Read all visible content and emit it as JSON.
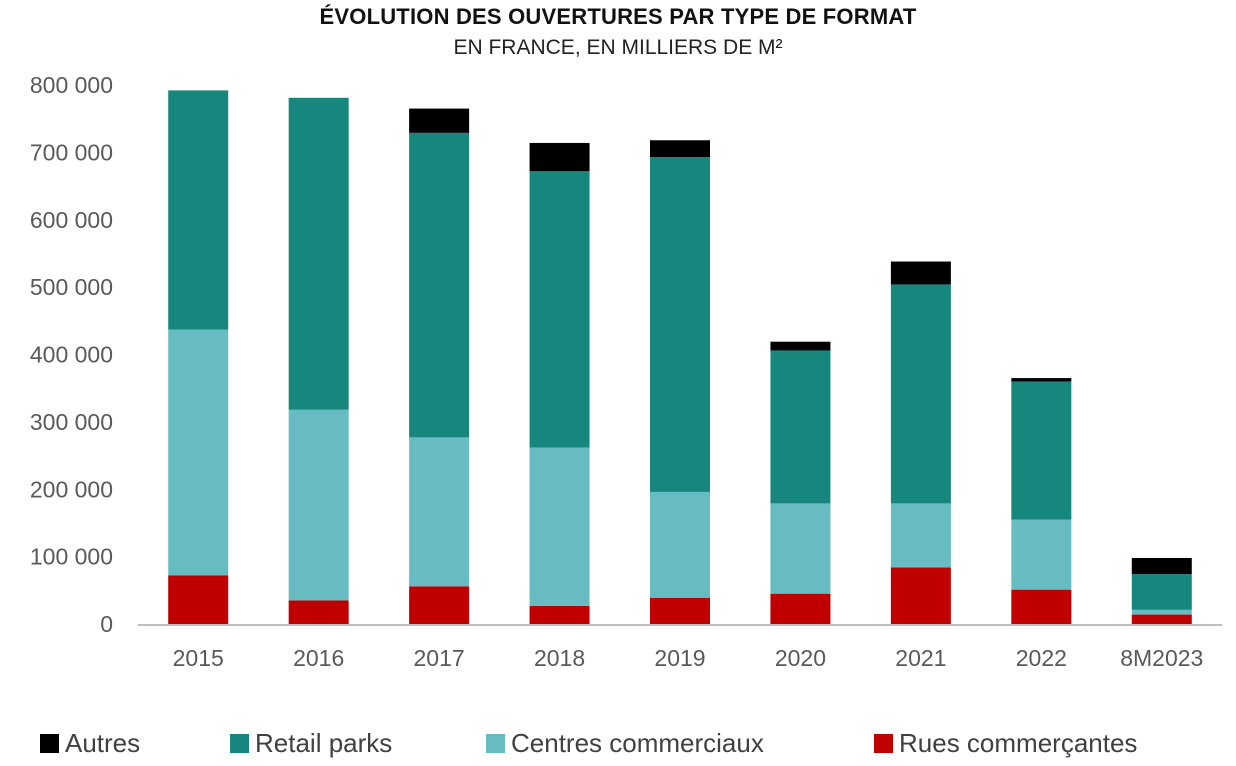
{
  "chart_data": {
    "type": "bar",
    "stacked": true,
    "title": "ÉVOLUTION DES OUVERTURES PAR TYPE DE FORMAT",
    "subtitle": "EN FRANCE, EN MILLIERS DE M²",
    "categories": [
      "2015",
      "2016",
      "2017",
      "2018",
      "2019",
      "2020",
      "2021",
      "2022",
      "8M2023"
    ],
    "ylim": [
      0,
      800000
    ],
    "yticks": [
      0,
      100000,
      200000,
      300000,
      400000,
      500000,
      600000,
      700000,
      800000
    ],
    "ytick_labels": [
      "0",
      "100 000",
      "200 000",
      "300 000",
      "400 000",
      "500 000",
      "600 000",
      "700 000",
      "800 000"
    ],
    "grid": false,
    "legend_position": "bottom",
    "series": [
      {
        "name": "Rues commerçantes",
        "color": "#c00000",
        "values": [
          72000,
          35000,
          56000,
          27000,
          39000,
          45000,
          84000,
          51000,
          14000
        ]
      },
      {
        "name": "Centres commerciaux",
        "color": "#66bcc0",
        "values": [
          365000,
          283000,
          221000,
          235000,
          157000,
          134000,
          95000,
          104000,
          7000
        ]
      },
      {
        "name": "Retail parks",
        "color": "#17877e",
        "values": [
          355000,
          463000,
          452000,
          410000,
          497000,
          227000,
          325000,
          205000,
          53000
        ]
      },
      {
        "name": "Autres",
        "color": "#000000",
        "values": [
          0,
          0,
          36000,
          42000,
          25000,
          13000,
          34000,
          5000,
          24000
        ]
      }
    ],
    "legend": [
      "Autres",
      "Retail parks",
      "Centres commerciaux",
      "Rues commerçantes"
    ]
  }
}
